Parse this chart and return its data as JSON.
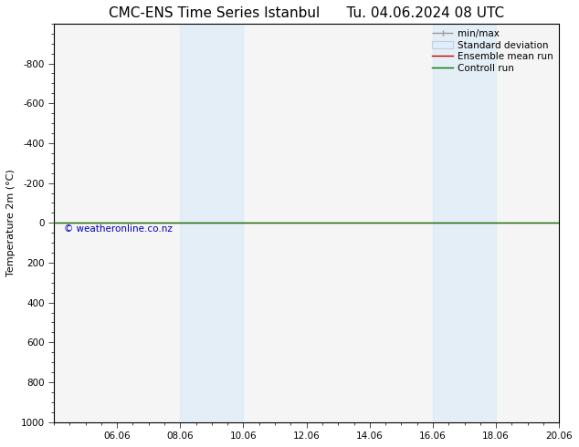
{
  "title_left": "CMC-ENS Time Series Istanbul",
  "title_right": "Tu. 04.06.2024 08 UTC",
  "ylabel": "Temperature 2m (°C)",
  "ylim": [
    -1000,
    1000
  ],
  "yticks": [
    -800,
    -600,
    -400,
    -200,
    0,
    200,
    400,
    600,
    800,
    1000
  ],
  "x_start_date": "04.06",
  "x_end_date": "20.06",
  "xlim": [
    0,
    16
  ],
  "xtick_positions": [
    2,
    4,
    6,
    8,
    10,
    12,
    14,
    16
  ],
  "xtick_labels": [
    "06.06",
    "08.06",
    "10.06",
    "12.06",
    "14.06",
    "16.06",
    "18.06",
    "20.06"
  ],
  "shaded_bands": [
    {
      "x_start": 4.0,
      "x_end": 6.0
    },
    {
      "x_start": 12.0,
      "x_end": 14.0
    }
  ],
  "band_color": "#d6eaf8",
  "band_alpha": 0.55,
  "control_run_color": "#007700",
  "ensemble_mean_color": "#cc0000",
  "min_max_color": "#999999",
  "std_dev_color": "#cccccc",
  "background_color": "#ffffff",
  "plot_bg_color": "#f5f5f5",
  "watermark": "© weatheronline.co.nz",
  "watermark_color": "#0000bb",
  "watermark_fontsize": 7.5,
  "legend_labels": [
    "min/max",
    "Standard deviation",
    "Ensemble mean run",
    "Controll run"
  ],
  "title_fontsize": 11,
  "ylabel_fontsize": 8,
  "tick_fontsize": 7.5,
  "legend_fontsize": 7.5
}
